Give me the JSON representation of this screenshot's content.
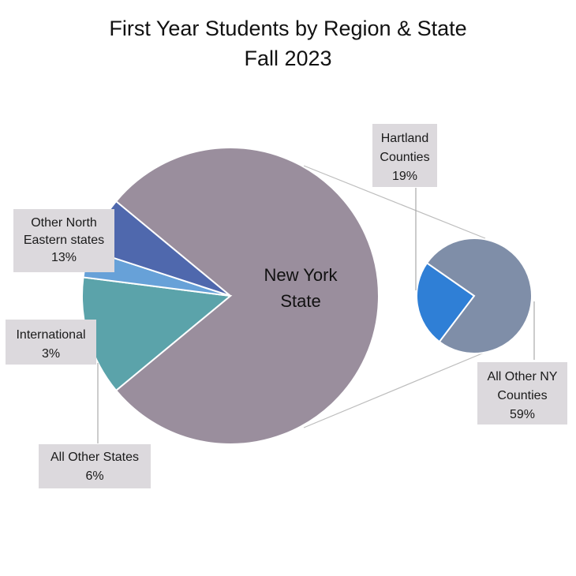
{
  "chart_data": {
    "type": "pie",
    "title": "First Year Students by Region & State",
    "subtitle": "Fall 2023",
    "main_pie": {
      "slices": [
        {
          "id": "nys",
          "name": "New York State",
          "label_lines": [
            "New York",
            "State"
          ],
          "value": 78,
          "color": "#9a8e9d"
        },
        {
          "id": "ne",
          "name": "Other North Eastern states",
          "label_lines": [
            "Other North",
            "Eastern states",
            "13%"
          ],
          "value": 13,
          "color": "#5ba3aa"
        },
        {
          "id": "intl",
          "name": "International",
          "label_lines": [
            "International",
            "3%"
          ],
          "value": 3,
          "color": "#67a1d8"
        },
        {
          "id": "aos",
          "name": "All Other States",
          "label_lines": [
            "All Other States",
            "6%"
          ],
          "value": 6,
          "color": "#4f68ad"
        }
      ]
    },
    "secondary_pie": {
      "parent": "New York State",
      "slices": [
        {
          "id": "hart",
          "name": "Hartland Counties",
          "label_lines": [
            "Hartland",
            "Counties",
            "19%"
          ],
          "value": 19,
          "color": "#2f7fd6"
        },
        {
          "id": "oth",
          "name": "All Other NY Counties",
          "label_lines": [
            "All Other NY",
            "Counties",
            "59%"
          ],
          "value": 59,
          "color": "#7f8ea8"
        }
      ]
    }
  }
}
